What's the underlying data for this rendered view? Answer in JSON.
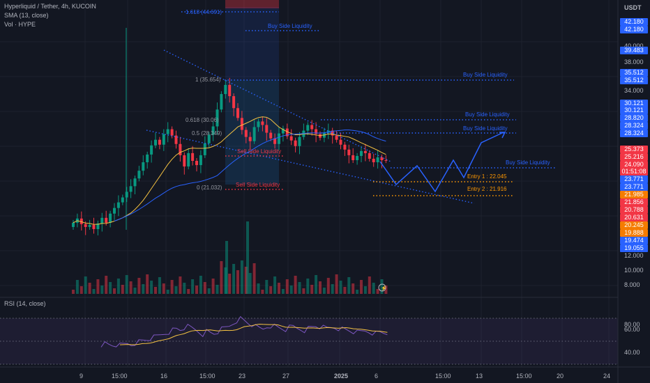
{
  "header": {
    "symbol_line": "Hyperliquid / Tether, 4h, KUCOIN",
    "sma_label": "SMA (13, close)",
    "vol_label": "Vol · HYPE",
    "currency": "USDT",
    "rsi_label": "RSI (14, close)"
  },
  "price_axis": {
    "ticks": [
      "40.000",
      "38.000",
      "34.000",
      "24.000",
      "16.000",
      "12.000",
      "10.000",
      "8.000"
    ],
    "badges": [
      {
        "text": "42.180",
        "color": "#2962ff"
      },
      {
        "text": "42.180",
        "color": "#2962ff"
      },
      {
        "text": "39.483",
        "color": "#2962ff"
      },
      {
        "text": "35.512",
        "color": "#2962ff"
      },
      {
        "text": "35.512",
        "color": "#2962ff"
      },
      {
        "text": "30.121",
        "color": "#2962ff"
      },
      {
        "text": "30.121",
        "color": "#2962ff"
      },
      {
        "text": "28.820",
        "color": "#2962ff"
      },
      {
        "text": "28.324",
        "color": "#2962ff"
      },
      {
        "text": "28.324",
        "color": "#2962ff"
      },
      {
        "text": "25.373",
        "color": "#f23645"
      },
      {
        "text": "25.216",
        "color": "#f23645"
      },
      {
        "text": "24.090",
        "color": "#f23645"
      },
      {
        "text": "01:51:08",
        "color": "#f23645"
      },
      {
        "text": "23.771",
        "color": "#2962ff"
      },
      {
        "text": "23.771",
        "color": "#2962ff"
      },
      {
        "text": "21.985",
        "color": "#f57c00"
      },
      {
        "text": "21.856",
        "color": "#f23645"
      },
      {
        "text": "20.788",
        "color": "#f23645"
      },
      {
        "text": "20.631",
        "color": "#f23645"
      },
      {
        "text": "20.245",
        "color": "#f57c00"
      },
      {
        "text": "19.888",
        "color": "#f57c00"
      },
      {
        "text": "19.474",
        "color": "#2962ff"
      },
      {
        "text": "19.055",
        "color": "#2962ff"
      }
    ]
  },
  "rsi_axis": {
    "ticks": [
      "80.00",
      "60.00",
      "40.00"
    ]
  },
  "time_axis": {
    "labels": [
      "9",
      "15:00",
      "16",
      "15:00",
      "23",
      "27",
      "2025",
      "6",
      "15:00",
      "13",
      "15:00",
      "20",
      "24"
    ]
  },
  "annotations": {
    "fib_1618": "1.618 (44.691)",
    "fib_1": "1 (35.654)",
    "fib_0618": "0.618 (30.06)",
    "fib_05": "0.5 (28.349)",
    "fib_0": "0 (21.032)",
    "bsl": "Buy Side Liquidity",
    "ssl": "Sell Side Liquidity",
    "entry1": "Entry 1 : 22.045",
    "entry2": "Entry 2 : 21.916"
  },
  "colors": {
    "bg": "#131722",
    "up": "#089981",
    "down": "#f23645",
    "sma": "#f5c242",
    "ma_blue": "#2962ff",
    "annotation_blue": "#2962ff",
    "entry": "#ff9800",
    "rsi_line": "#7e57c2"
  },
  "chart_data": {
    "type": "candlestick",
    "symbol": "Hyperliquid / Tether",
    "interval": "4h",
    "exchange": "KUCOIN",
    "approx_close_series": [
      15.2,
      15.8,
      15.0,
      14.6,
      14.9,
      14.3,
      15.1,
      15.9,
      15.2,
      16.5,
      17.3,
      18.1,
      18.8,
      19.6,
      20.4,
      21.5,
      22.6,
      23.8,
      24.9,
      26.2,
      27.0,
      26.3,
      27.8,
      28.5,
      27.6,
      26.4,
      24.8,
      23.2,
      25.1,
      24.0,
      23.4,
      24.8,
      26.5,
      27.7,
      28.9,
      31.3,
      33.5,
      34.8,
      33.2,
      31.5,
      30.1,
      28.4,
      27.4,
      26.8,
      28.8,
      29.6,
      29.1,
      28.0,
      27.2,
      26.4,
      27.9,
      28.6,
      27.5,
      26.9,
      26.1,
      27.4,
      28.3,
      29.1,
      28.5,
      27.8,
      27.3,
      28.0,
      28.3,
      27.6,
      27.0,
      26.3,
      25.6,
      24.8,
      24.1,
      24.7,
      25.4,
      25.1,
      24.3,
      23.8,
      24.5,
      24.1,
      24.09
    ],
    "entries": [
      22.045,
      21.916
    ],
    "fib_levels": {
      "0": 21.032,
      "0.5": 28.349,
      "0.618": 30.06,
      "1": 35.654,
      "1.618": 44.691
    },
    "rsi_ticks": [
      80,
      60,
      40
    ],
    "last_price": 24.09
  }
}
